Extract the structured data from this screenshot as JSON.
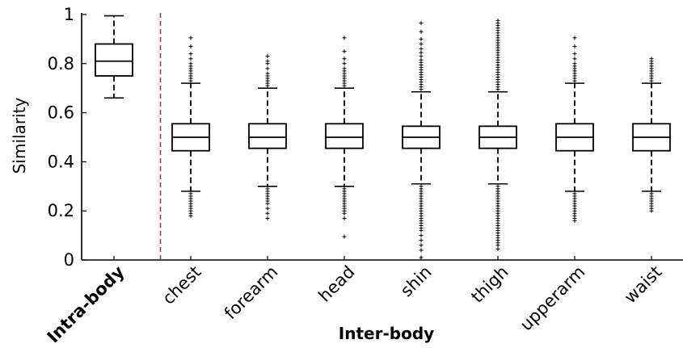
{
  "chart_data": {
    "type": "box",
    "ylabel": "Similarity",
    "xlabel": "Inter-body",
    "ylim": [
      0,
      1
    ],
    "yticks": [
      "0",
      "0.2",
      "0.4",
      "0.6",
      "0.8",
      "1"
    ],
    "grid": false,
    "separator": {
      "after_category": "Intra-body",
      "style": "dashed",
      "color": "#b03050"
    },
    "categories": [
      "Intra-body",
      "chest",
      "forearm",
      "head",
      "shin",
      "thigh",
      "upperarm",
      "waist"
    ],
    "boxes": [
      {
        "label": "Intra-body",
        "bold": true,
        "whisker_low": 0.66,
        "q1": 0.75,
        "median": 0.81,
        "q3": 0.88,
        "whisker_high": 0.995,
        "outliers_low": [],
        "outliers_high": []
      },
      {
        "label": "chest",
        "whisker_low": 0.28,
        "q1": 0.445,
        "median": 0.5,
        "q3": 0.555,
        "whisker_high": 0.72,
        "outliers_low": [
          0.27,
          0.26,
          0.25,
          0.24,
          0.23,
          0.22,
          0.21,
          0.2,
          0.19,
          0.18
        ],
        "outliers_high": [
          0.73,
          0.74,
          0.75,
          0.76,
          0.77,
          0.78,
          0.79,
          0.8,
          0.82,
          0.84,
          0.87,
          0.905
        ]
      },
      {
        "label": "forearm",
        "whisker_low": 0.3,
        "q1": 0.455,
        "median": 0.5,
        "q3": 0.555,
        "whisker_high": 0.7,
        "outliers_low": [
          0.29,
          0.28,
          0.27,
          0.26,
          0.25,
          0.24,
          0.23,
          0.21,
          0.19,
          0.17
        ],
        "outliers_high": [
          0.71,
          0.72,
          0.73,
          0.74,
          0.75,
          0.76,
          0.78,
          0.8,
          0.81,
          0.83
        ]
      },
      {
        "label": "head",
        "whisker_low": 0.3,
        "q1": 0.455,
        "median": 0.5,
        "q3": 0.555,
        "whisker_high": 0.7,
        "outliers_low": [
          0.29,
          0.28,
          0.27,
          0.26,
          0.25,
          0.24,
          0.23,
          0.22,
          0.21,
          0.2,
          0.19,
          0.17,
          0.095
        ],
        "outliers_high": [
          0.71,
          0.72,
          0.73,
          0.74,
          0.75,
          0.76,
          0.77,
          0.78,
          0.8,
          0.82,
          0.85,
          0.905
        ]
      },
      {
        "label": "shin",
        "whisker_low": 0.31,
        "q1": 0.455,
        "median": 0.5,
        "q3": 0.545,
        "whisker_high": 0.685,
        "outliers_low": [
          0.3,
          0.29,
          0.28,
          0.27,
          0.26,
          0.25,
          0.24,
          0.23,
          0.22,
          0.21,
          0.2,
          0.19,
          0.18,
          0.17,
          0.16,
          0.15,
          0.14,
          0.13,
          0.12,
          0.1,
          0.08,
          0.06,
          0.04,
          0.01
        ],
        "outliers_high": [
          0.695,
          0.705,
          0.715,
          0.725,
          0.735,
          0.745,
          0.755,
          0.765,
          0.775,
          0.785,
          0.795,
          0.805,
          0.815,
          0.83,
          0.845,
          0.86,
          0.88,
          0.9,
          0.93,
          0.965
        ]
      },
      {
        "label": "thigh",
        "whisker_low": 0.31,
        "q1": 0.455,
        "median": 0.5,
        "q3": 0.545,
        "whisker_high": 0.685,
        "outliers_low": [
          0.3,
          0.29,
          0.28,
          0.27,
          0.26,
          0.25,
          0.24,
          0.23,
          0.22,
          0.21,
          0.2,
          0.19,
          0.18,
          0.17,
          0.16,
          0.15,
          0.14,
          0.13,
          0.12,
          0.11,
          0.1,
          0.09,
          0.08,
          0.07,
          0.06,
          0.045
        ],
        "outliers_high": [
          0.695,
          0.705,
          0.715,
          0.725,
          0.735,
          0.745,
          0.755,
          0.765,
          0.775,
          0.785,
          0.795,
          0.805,
          0.815,
          0.825,
          0.835,
          0.845,
          0.855,
          0.865,
          0.875,
          0.885,
          0.895,
          0.905,
          0.915,
          0.925,
          0.935,
          0.945,
          0.955,
          0.965,
          0.975
        ]
      },
      {
        "label": "upperarm",
        "whisker_low": 0.28,
        "q1": 0.445,
        "median": 0.5,
        "q3": 0.555,
        "whisker_high": 0.72,
        "outliers_low": [
          0.27,
          0.26,
          0.25,
          0.24,
          0.23,
          0.22,
          0.21,
          0.2,
          0.19,
          0.18,
          0.17,
          0.16
        ],
        "outliers_high": [
          0.73,
          0.74,
          0.75,
          0.76,
          0.77,
          0.78,
          0.79,
          0.8,
          0.82,
          0.84,
          0.87,
          0.905
        ]
      },
      {
        "label": "waist",
        "whisker_low": 0.28,
        "q1": 0.445,
        "median": 0.5,
        "q3": 0.555,
        "whisker_high": 0.72,
        "outliers_low": [
          0.27,
          0.26,
          0.25,
          0.24,
          0.23,
          0.22,
          0.21,
          0.2
        ],
        "outliers_high": [
          0.73,
          0.74,
          0.75,
          0.76,
          0.77,
          0.78,
          0.79,
          0.8,
          0.81,
          0.82
        ]
      }
    ]
  }
}
